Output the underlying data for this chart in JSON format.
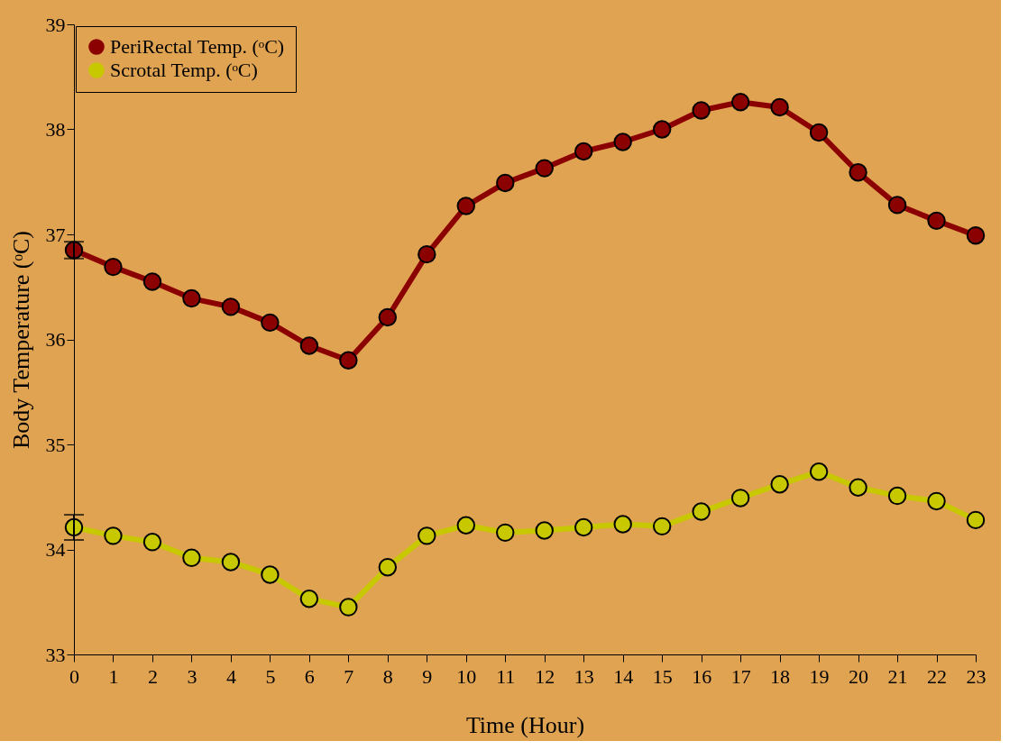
{
  "chart_data": {
    "type": "line",
    "xlabel": "Time (Hour)",
    "ylabel": "Body Temperature (ᵒC)",
    "x": [
      0,
      1,
      2,
      3,
      4,
      5,
      6,
      7,
      8,
      9,
      10,
      11,
      12,
      13,
      14,
      15,
      16,
      17,
      18,
      19,
      20,
      21,
      22,
      23
    ],
    "series": [
      {
        "name": "PeriRectal Temp. (ᵒC)",
        "color": "#8b0000",
        "values": [
          36.85,
          36.69,
          36.55,
          36.39,
          36.31,
          36.16,
          35.94,
          35.8,
          36.21,
          36.81,
          37.27,
          37.49,
          37.63,
          37.79,
          37.88,
          38.0,
          38.18,
          38.26,
          38.21,
          37.97,
          37.59,
          37.28,
          37.13,
          36.99
        ],
        "errors": [
          0.08,
          null,
          null,
          null,
          null,
          null,
          null,
          null,
          null,
          null,
          null,
          null,
          null,
          null,
          null,
          null,
          null,
          null,
          null,
          null,
          null,
          null,
          null,
          null
        ]
      },
      {
        "name": "Scrotal Temp. (ᵒC)",
        "color": "#c8c800",
        "values": [
          34.21,
          34.13,
          34.07,
          33.92,
          33.88,
          33.76,
          33.53,
          33.45,
          33.83,
          34.13,
          34.23,
          34.16,
          34.18,
          34.21,
          34.24,
          34.22,
          34.36,
          34.49,
          34.62,
          34.74,
          34.59,
          34.51,
          34.46,
          34.28
        ],
        "errors": [
          0.12,
          null,
          null,
          null,
          null,
          null,
          null,
          null,
          null,
          null,
          null,
          null,
          null,
          null,
          null,
          null,
          null,
          null,
          null,
          null,
          null,
          null,
          null,
          null
        ]
      }
    ],
    "xlim": [
      0,
      23
    ],
    "xticks": [
      0,
      1,
      2,
      3,
      4,
      5,
      6,
      7,
      8,
      9,
      10,
      11,
      12,
      13,
      14,
      15,
      16,
      17,
      18,
      19,
      20,
      21,
      22,
      23
    ],
    "ylim": [
      33,
      39
    ],
    "yticks": [
      33,
      34,
      35,
      36,
      37,
      38,
      39
    ],
    "grid": false,
    "legend": "top left",
    "marker": "circle",
    "line_style": "solid"
  }
}
